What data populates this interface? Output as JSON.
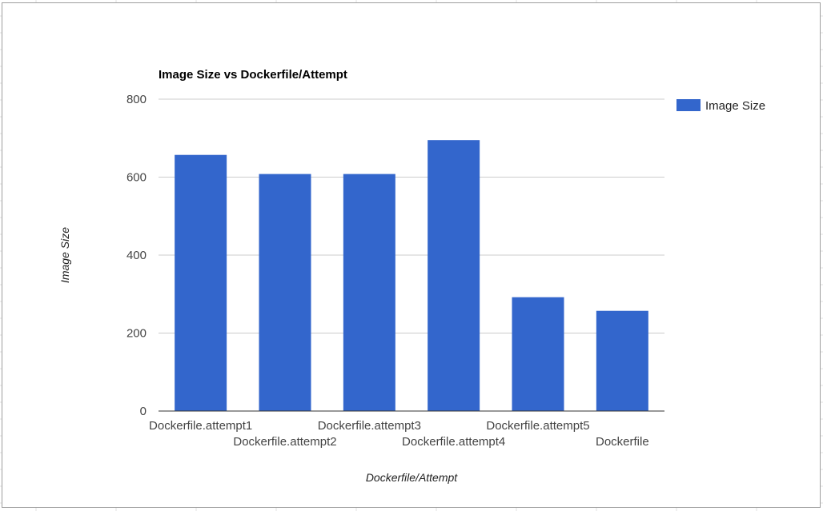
{
  "colors": {
    "bar": "#3366cc",
    "gridline": "#cccccc",
    "baseline": "#333333"
  },
  "chart_data": {
    "type": "bar",
    "title": "Image Size vs Dockerfile/Attempt",
    "xlabel": "Dockerfile/Attempt",
    "ylabel": "Image Size",
    "categories": [
      "Dockerfile.attempt1",
      "Dockerfile.attempt2",
      "Dockerfile.attempt3",
      "Dockerfile.attempt4",
      "Dockerfile.attempt5",
      "Dockerfile"
    ],
    "series": [
      {
        "name": "Image Size",
        "values": [
          657,
          608,
          608,
          695,
          292,
          257
        ]
      }
    ],
    "ylim": [
      0,
      800
    ],
    "yticks": [
      "0",
      "200",
      "400",
      "600",
      "800"
    ],
    "grid": true,
    "legend": "right"
  }
}
